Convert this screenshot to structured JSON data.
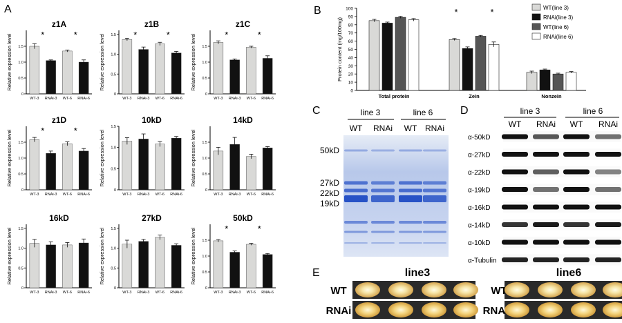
{
  "panels": {
    "A": {
      "label": "A"
    },
    "B": {
      "label": "B"
    },
    "C": {
      "label": "C"
    },
    "D": {
      "label": "D"
    },
    "E": {
      "label": "E"
    }
  },
  "colors": {
    "wt": "#d9d9d7",
    "rnai": "#111111",
    "wt6": "#555555",
    "rnai6": "#ffffff"
  },
  "chart_data": [
    {
      "type": "bar",
      "title": "z1A",
      "categories": [
        "WT-3",
        "RNAi-3",
        "WT-6",
        "RNAi-6"
      ],
      "values": [
        1.5,
        1.05,
        1.35,
        1.0
      ],
      "errors": [
        0.08,
        0.02,
        0.03,
        0.07
      ],
      "ylabel": "Relative expression level",
      "ylim": [
        0,
        2.0
      ],
      "yticks": [
        0,
        0.5,
        1.0,
        1.5
      ],
      "tick_labels": [
        "0",
        "0.5",
        "1.0",
        "1.5"
      ],
      "stars": [
        0,
        2
      ],
      "star": "*"
    },
    {
      "type": "bar",
      "title": "z1B",
      "categories": [
        "WT-3",
        "RNAi-3",
        "WT-6",
        "RNAi-6"
      ],
      "values": [
        1.37,
        1.12,
        1.26,
        1.03
      ],
      "errors": [
        0.03,
        0.06,
        0.04,
        0.04
      ],
      "ylabel": "Relative expression level",
      "ylim": [
        0,
        1.6
      ],
      "yticks": [
        0,
        0.5,
        1.0,
        1.5
      ],
      "tick_labels": [
        "0",
        "0.5",
        "1.0",
        "1.5"
      ],
      "stars": [
        0,
        2
      ],
      "star": "*"
    },
    {
      "type": "bar",
      "title": "z1C",
      "categories": [
        "WT-3",
        "RNAi-3",
        "WT-6",
        "RNAi-6"
      ],
      "values": [
        1.62,
        1.07,
        1.47,
        1.12
      ],
      "errors": [
        0.05,
        0.03,
        0.03,
        0.08
      ],
      "ylabel": "Relative expression level",
      "ylim": [
        0,
        2.0
      ],
      "yticks": [
        0,
        0.5,
        1.0,
        1.5
      ],
      "tick_labels": [
        "0",
        "0.5",
        "1.0",
        "1.5"
      ],
      "stars": [
        0,
        2
      ],
      "star": "*"
    },
    {
      "type": "bar",
      "title": "z1D",
      "categories": [
        "WT-3",
        "RNAi-3",
        "WT-6",
        "RNAi-6"
      ],
      "values": [
        1.58,
        1.15,
        1.45,
        1.22
      ],
      "errors": [
        0.07,
        0.07,
        0.06,
        0.08
      ],
      "ylabel": "Relative expression level",
      "ylim": [
        0,
        2.0
      ],
      "yticks": [
        0,
        0.5,
        1.0,
        1.5
      ],
      "tick_labels": [
        "0",
        "0.5",
        "1.0",
        "1.5"
      ],
      "stars": [
        0,
        2
      ],
      "star": "*"
    },
    {
      "type": "bar",
      "title": "10kD",
      "categories": [
        "WT-3",
        "RNAi-3",
        "WT-6",
        "RNAi-6"
      ],
      "values": [
        1.15,
        1.2,
        1.08,
        1.22
      ],
      "errors": [
        0.08,
        0.12,
        0.06,
        0.04
      ],
      "ylabel": "Relative expression level",
      "ylim": [
        0,
        1.5
      ],
      "yticks": [
        0,
        0.5,
        1.0,
        1.5
      ],
      "tick_labels": [
        "0",
        "0.5",
        "1.0",
        "1.5"
      ],
      "stars": [],
      "star": "*"
    },
    {
      "type": "bar",
      "title": "14kD",
      "categories": [
        "WT-3",
        "RNAi-3",
        "WT-6",
        "RNAi-6"
      ],
      "values": [
        1.22,
        1.43,
        1.05,
        1.32
      ],
      "errors": [
        0.12,
        0.22,
        0.07,
        0.04
      ],
      "ylabel": "Relative expression level",
      "ylim": [
        0,
        2.0
      ],
      "yticks": [
        0,
        0.5,
        1.0,
        1.5
      ],
      "tick_labels": [
        "0",
        "0.5",
        "1.0",
        "1.5"
      ],
      "stars": [],
      "star": "*"
    },
    {
      "type": "bar",
      "title": "16kD",
      "categories": [
        "WT-3",
        "RNAi-3",
        "WT-6",
        "RNAi-6"
      ],
      "values": [
        1.12,
        1.08,
        1.08,
        1.13
      ],
      "errors": [
        0.1,
        0.08,
        0.06,
        0.1
      ],
      "ylabel": "Relative expression level",
      "ylim": [
        0,
        1.6
      ],
      "yticks": [
        0,
        0.5,
        1.0,
        1.5
      ],
      "tick_labels": [
        "0",
        "0.5",
        "1.0",
        "1.5"
      ],
      "stars": [],
      "star": "*"
    },
    {
      "type": "bar",
      "title": "27kD",
      "categories": [
        "WT-3",
        "RNAi-3",
        "WT-6",
        "RNAi-6"
      ],
      "values": [
        1.1,
        1.17,
        1.27,
        1.07
      ],
      "errors": [
        0.1,
        0.05,
        0.06,
        0.04
      ],
      "ylabel": "Relative expression level",
      "ylim": [
        0,
        1.6
      ],
      "yticks": [
        0,
        0.5,
        1.0,
        1.5
      ],
      "tick_labels": [
        "0",
        "0.5",
        "1.0",
        "1.5"
      ],
      "stars": [],
      "star": "*"
    },
    {
      "type": "bar",
      "title": "50kD",
      "categories": [
        "WT-3",
        "RNAi-3",
        "WT-6",
        "RNAi-6"
      ],
      "values": [
        1.48,
        1.12,
        1.37,
        1.05
      ],
      "errors": [
        0.04,
        0.04,
        0.03,
        0.03
      ],
      "ylabel": "Relative expression level",
      "ylim": [
        0,
        2.0
      ],
      "yticks": [
        0,
        0.5,
        1.0,
        1.5
      ],
      "tick_labels": [
        "0",
        "0.5",
        "1.0",
        "1.5"
      ],
      "stars": [
        0,
        2
      ],
      "star": "*"
    },
    {
      "type": "bar",
      "title": "",
      "categories": [
        "Total protein",
        "Zein",
        "Nonzein"
      ],
      "ylabel": "Protein content (mg/100mg)",
      "ylim": [
        0,
        100
      ],
      "yticks": [
        0,
        10,
        20,
        30,
        40,
        50,
        60,
        70,
        80,
        90,
        100
      ],
      "legend": "top-right",
      "star": "*",
      "stars": [
        1,
        1
      ],
      "series": [
        {
          "name": "WT(line 3)",
          "values": [
            85,
            62,
            22
          ],
          "errors": [
            1.5,
            1.2,
            1.5
          ]
        },
        {
          "name": "RNAi(line 3)",
          "values": [
            82,
            51,
            25
          ],
          "errors": [
            1.2,
            2.0,
            1.0
          ]
        },
        {
          "name": "WT(line 6)",
          "values": [
            89,
            66,
            20
          ],
          "errors": [
            1.2,
            1.0,
            1.0
          ]
        },
        {
          "name": "RNAi(line 6)",
          "values": [
            86,
            56,
            22
          ],
          "errors": [
            1.5,
            3.0,
            1.0
          ]
        }
      ]
    }
  ],
  "gel_c": {
    "lines": [
      "line 3",
      "line 6"
    ],
    "lanes": [
      "WT",
      "RNAi",
      "WT",
      "RNAi"
    ],
    "markers": [
      "50kD",
      "27kD",
      "22kD",
      "19kD"
    ]
  },
  "blot_d": {
    "lines": [
      "line 3",
      "line 6"
    ],
    "lanes": [
      "WT",
      "RNAi",
      "WT",
      "RNAi"
    ],
    "rows": [
      {
        "label": "α-50kD",
        "levels": [
          1.0,
          0.6,
          1.0,
          0.45
        ]
      },
      {
        "label": "α-27kD",
        "levels": [
          1.0,
          1.0,
          1.0,
          1.0
        ]
      },
      {
        "label": "α-22kD",
        "levels": [
          1.0,
          0.55,
          1.0,
          0.35
        ]
      },
      {
        "label": "α-19kD",
        "levels": [
          1.0,
          0.45,
          1.0,
          0.45
        ]
      },
      {
        "label": "α-16kD",
        "levels": [
          1.0,
          1.0,
          1.0,
          1.0
        ]
      },
      {
        "label": "α-14kD",
        "levels": [
          0.8,
          0.95,
          0.8,
          0.95
        ]
      },
      {
        "label": "α-10kD",
        "levels": [
          1.0,
          1.0,
          1.0,
          1.0
        ]
      },
      {
        "label": "α-Tubulin",
        "levels": [
          0.9,
          0.9,
          0.9,
          0.9
        ]
      }
    ]
  },
  "kernels_e": {
    "groups": [
      "line3",
      "line6"
    ],
    "rows": [
      "WT",
      "RNAi"
    ]
  }
}
